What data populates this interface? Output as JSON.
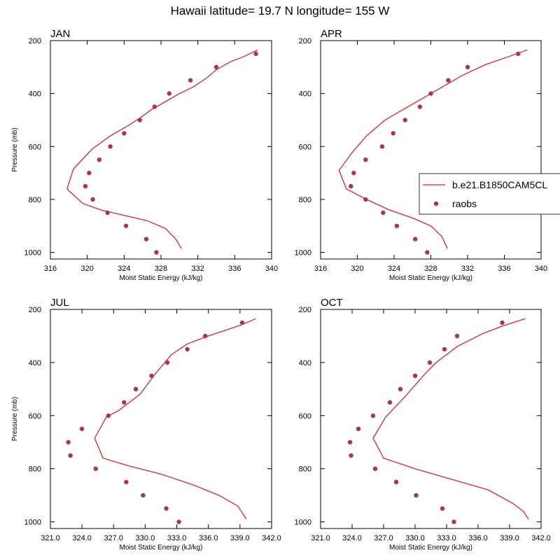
{
  "chart_data": {
    "title": "Hawaii  latitude= 19.7 N longitude= 155 W",
    "legend": {
      "position": "right of APR panel",
      "model_label": "b.e21.B1850CAM5CL",
      "obs_label": "raobs"
    },
    "colors": {
      "model": "#e8202a",
      "obs": "#b0305a"
    },
    "panels": [
      {
        "name": "JAN",
        "type": "line",
        "xlabel": "Moist Static Energy (kJ/kg)",
        "ylabel": "Pressure (mb)",
        "xlim": [
          316,
          340
        ],
        "xticks": [
          316,
          320,
          324,
          328,
          332,
          336,
          340
        ],
        "xtick_labels": [
          "316",
          "320",
          "324",
          "328",
          "332",
          "336",
          "340"
        ],
        "ylim": [
          200,
          1025
        ],
        "yticks": [
          200,
          400,
          600,
          800,
          1000
        ],
        "ytick_labels": [
          "200",
          "400",
          "600",
          "800",
          "1000"
        ],
        "model": {
          "energy": [
            338.5,
            337.0,
            335.5,
            334.0,
            333.0,
            331.5,
            330.0,
            328.5,
            327.0,
            325.8,
            324.5,
            322.5,
            320.5,
            318.5,
            317.8,
            319.5,
            321.5,
            324.0,
            326.5,
            328.5,
            329.6,
            330.2
          ],
          "pressure": [
            235,
            260,
            280,
            310,
            340,
            375,
            400,
            430,
            460,
            490,
            520,
            560,
            610,
            685,
            760,
            815,
            840,
            860,
            880,
            910,
            950,
            985
          ]
        },
        "obs": {
          "energy": [
            338.3,
            334.0,
            331.2,
            328.9,
            327.3,
            325.7,
            324.0,
            322.5,
            321.3,
            320.2,
            319.8,
            320.6,
            322.2,
            324.2,
            326.4,
            327.5
          ],
          "pressure": [
            250,
            300,
            350,
            400,
            450,
            500,
            550,
            600,
            650,
            700,
            750,
            800,
            850,
            900,
            950,
            1000
          ]
        }
      },
      {
        "name": "APR",
        "type": "line",
        "xlabel": "Moist Static Energy (kJ/kg)",
        "ylabel": "",
        "xlim": [
          316,
          340
        ],
        "xticks": [
          316,
          320,
          324,
          328,
          332,
          336,
          340
        ],
        "xtick_labels": [
          "316",
          "320",
          "324",
          "328",
          "332",
          "336",
          "340"
        ],
        "ylim": [
          200,
          1025
        ],
        "yticks": [
          200,
          400,
          600,
          800,
          1000
        ],
        "ytick_labels": [
          "200",
          "400",
          "600",
          "800",
          "1000"
        ],
        "model": {
          "energy": [
            338.5,
            336.5,
            334.0,
            331.5,
            329.0,
            327.0,
            325.0,
            323.0,
            321.0,
            319.5,
            318.0,
            318.8,
            321.0,
            323.5,
            326.0,
            328.0,
            329.2,
            329.8
          ],
          "pressure": [
            235,
            260,
            290,
            330,
            380,
            420,
            460,
            500,
            560,
            620,
            690,
            760,
            800,
            840,
            870,
            900,
            940,
            985
          ]
        },
        "obs": {
          "energy": [
            337.5,
            332.0,
            329.9,
            328.0,
            326.8,
            325.2,
            323.9,
            322.7,
            320.9,
            319.6,
            319.3,
            320.9,
            322.8,
            324.3,
            326.3,
            327.6
          ],
          "pressure": [
            250,
            300,
            350,
            400,
            450,
            500,
            550,
            600,
            650,
            700,
            750,
            800,
            850,
            900,
            950,
            1000
          ]
        }
      },
      {
        "name": "JUL",
        "type": "line",
        "xlabel": "Moist Static Energy (kJ/kg)",
        "ylabel": "Pressure (mb)",
        "xlim": [
          321,
          342
        ],
        "xticks": [
          321,
          324,
          327,
          330,
          333,
          336,
          339,
          342
        ],
        "xtick_labels": [
          "321.0",
          "324.0",
          "327.0",
          "330.0",
          "333.0",
          "336.0",
          "339.0",
          "342.0"
        ],
        "ylim": [
          200,
          1025
        ],
        "yticks": [
          200,
          400,
          600,
          800,
          1000
        ],
        "ytick_labels": [
          "200",
          "400",
          "600",
          "800",
          "1000"
        ],
        "model": {
          "energy": [
            340.5,
            339.0,
            337.5,
            336.0,
            334.0,
            332.5,
            331.0,
            329.5,
            327.5,
            326.3,
            325.2,
            326.0,
            328.5,
            331.5,
            334.5,
            337.0,
            338.8,
            339.6
          ],
          "pressure": [
            235,
            260,
            280,
            300,
            330,
            370,
            440,
            520,
            580,
            605,
            685,
            760,
            790,
            820,
            860,
            900,
            940,
            990
          ]
        },
        "obs": {
          "energy": [
            339.2,
            335.7,
            334.0,
            332.1,
            330.6,
            329.1,
            328.0,
            326.5,
            324.0,
            322.7,
            322.9,
            325.3,
            328.2,
            329.8,
            332.0,
            333.2
          ],
          "pressure": [
            250,
            300,
            350,
            400,
            450,
            500,
            550,
            600,
            650,
            700,
            750,
            800,
            850,
            900,
            950,
            1000
          ]
        }
      },
      {
        "name": "OCT",
        "type": "line",
        "xlabel": "Moist Static Energy (kJ/kg)",
        "ylabel": "",
        "xlim": [
          321,
          342
        ],
        "xticks": [
          321,
          324,
          327,
          330,
          333,
          336,
          339,
          342
        ],
        "xtick_labels": [
          "321.0",
          "324.0",
          "327.0",
          "330.0",
          "333.0",
          "336.0",
          "339.0",
          "342.0"
        ],
        "ylim": [
          200,
          1025
        ],
        "yticks": [
          200,
          400,
          600,
          800,
          1000
        ],
        "ytick_labels": [
          "200",
          "400",
          "600",
          "800",
          "1000"
        ],
        "model": {
          "energy": [
            340.5,
            338.5,
            336.5,
            334.0,
            332.0,
            331.0,
            329.0,
            327.2,
            326.0,
            327.0,
            330.0,
            333.5,
            337.0,
            339.3,
            340.3,
            340.8
          ],
          "pressure": [
            235,
            260,
            290,
            340,
            400,
            440,
            530,
            605,
            685,
            760,
            800,
            840,
            880,
            930,
            960,
            990
          ]
        },
        "obs": {
          "energy": [
            338.3,
            334.0,
            332.8,
            331.4,
            330.0,
            328.6,
            327.6,
            326.0,
            324.6,
            323.8,
            323.9,
            326.2,
            328.2,
            330.1,
            332.6,
            333.7
          ],
          "pressure": [
            250,
            300,
            350,
            400,
            450,
            500,
            550,
            600,
            650,
            700,
            750,
            800,
            850,
            900,
            950,
            1000
          ]
        }
      }
    ]
  }
}
